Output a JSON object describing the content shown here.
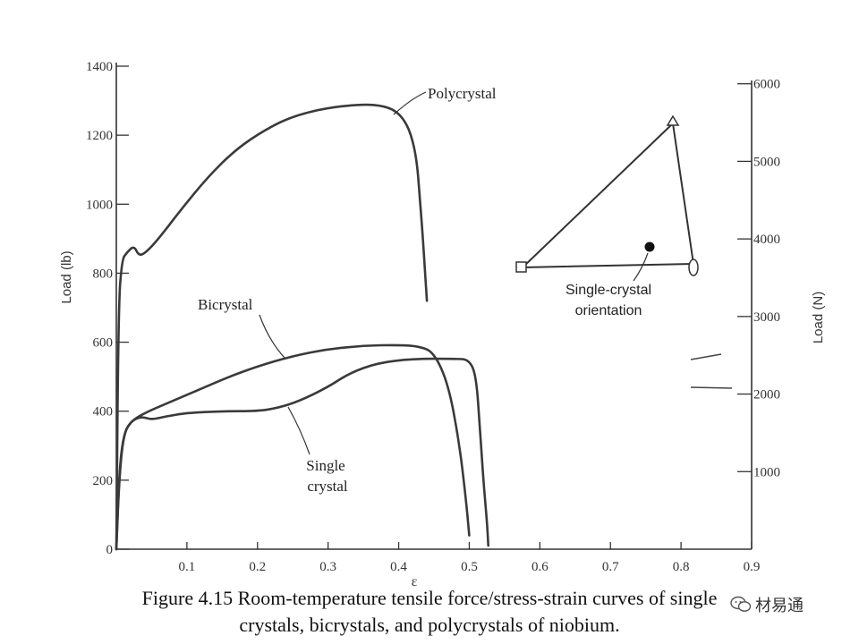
{
  "chart_data": {
    "type": "line",
    "title": "",
    "xlabel": "ε",
    "ylabel_left": "Load (lb)",
    "ylabel_right": "Load (N)",
    "xlim": [
      0,
      0.9
    ],
    "ylim_left": [
      0,
      1400
    ],
    "ylim_right": [
      0,
      6227
    ],
    "x_ticks": [
      {
        "value": 0.1,
        "label": "0.1"
      },
      {
        "value": 0.2,
        "label": "0.2"
      },
      {
        "value": 0.3,
        "label": "0.3"
      },
      {
        "value": 0.4,
        "label": "0.4"
      },
      {
        "value": 0.5,
        "label": "0.5"
      },
      {
        "value": 0.6,
        "label": "0.6"
      },
      {
        "value": 0.7,
        "label": "0.7"
      },
      {
        "value": 0.8,
        "label": "0.8"
      },
      {
        "value": 0.9,
        "label": "0.9"
      }
    ],
    "y_ticks_left": [
      {
        "value": 0,
        "label": "0"
      },
      {
        "value": 200,
        "label": "200"
      },
      {
        "value": 400,
        "label": "400"
      },
      {
        "value": 600,
        "label": "600"
      },
      {
        "value": 800,
        "label": "800"
      },
      {
        "value": 1000,
        "label": "1000"
      },
      {
        "value": 1200,
        "label": "1200"
      },
      {
        "value": 1400,
        "label": "1400"
      }
    ],
    "y_ticks_right": [
      {
        "value": 1000,
        "label": "1000"
      },
      {
        "value": 2000,
        "label": "2000"
      },
      {
        "value": 3000,
        "label": "3000"
      },
      {
        "value": 4000,
        "label": "4000"
      },
      {
        "value": 5000,
        "label": "5000"
      },
      {
        "value": 6000,
        "label": "6000"
      }
    ],
    "series": [
      {
        "name": "Polycrystal",
        "points": [
          [
            0,
            0
          ],
          [
            0.003,
            700
          ],
          [
            0.008,
            840
          ],
          [
            0.015,
            860
          ],
          [
            0.025,
            880
          ],
          [
            0.032,
            850
          ],
          [
            0.042,
            860
          ],
          [
            0.06,
            900
          ],
          [
            0.09,
            980
          ],
          [
            0.13,
            1080
          ],
          [
            0.17,
            1160
          ],
          [
            0.21,
            1215
          ],
          [
            0.25,
            1255
          ],
          [
            0.3,
            1280
          ],
          [
            0.35,
            1290
          ],
          [
            0.38,
            1285
          ],
          [
            0.4,
            1265
          ],
          [
            0.415,
            1220
          ],
          [
            0.425,
            1140
          ],
          [
            0.43,
            1020
          ],
          [
            0.435,
            880
          ],
          [
            0.44,
            720
          ]
        ]
      },
      {
        "name": "Bicrystal",
        "points": [
          [
            0,
            0
          ],
          [
            0.004,
            200
          ],
          [
            0.01,
            330
          ],
          [
            0.02,
            370
          ],
          [
            0.04,
            395
          ],
          [
            0.08,
            430
          ],
          [
            0.12,
            465
          ],
          [
            0.16,
            500
          ],
          [
            0.2,
            530
          ],
          [
            0.25,
            560
          ],
          [
            0.3,
            580
          ],
          [
            0.35,
            590
          ],
          [
            0.4,
            592
          ],
          [
            0.43,
            588
          ],
          [
            0.45,
            570
          ],
          [
            0.47,
            480
          ],
          [
            0.485,
            320
          ],
          [
            0.495,
            150
          ],
          [
            0.5,
            40
          ]
        ]
      },
      {
        "name": "Single crystal",
        "points": [
          [
            0,
            0
          ],
          [
            0.004,
            220
          ],
          [
            0.01,
            330
          ],
          [
            0.02,
            370
          ],
          [
            0.035,
            385
          ],
          [
            0.05,
            375
          ],
          [
            0.07,
            385
          ],
          [
            0.1,
            395
          ],
          [
            0.15,
            400
          ],
          [
            0.2,
            400
          ],
          [
            0.23,
            410
          ],
          [
            0.26,
            430
          ],
          [
            0.3,
            470
          ],
          [
            0.33,
            510
          ],
          [
            0.37,
            540
          ],
          [
            0.42,
            552
          ],
          [
            0.48,
            552
          ],
          [
            0.5,
            550
          ],
          [
            0.51,
            500
          ],
          [
            0.515,
            350
          ],
          [
            0.52,
            200
          ],
          [
            0.525,
            80
          ],
          [
            0.527,
            10
          ]
        ]
      }
    ],
    "series_labels": [
      "Polycrystal",
      "Bicrystal",
      "Single",
      "crystal"
    ],
    "inset": {
      "label_lines": [
        "Single-crystal",
        "orientation"
      ],
      "markers": [
        "square",
        "triangle",
        "ellipse"
      ]
    }
  },
  "caption": {
    "line1": "Figure 4.15 Room-temperature tensile force/stress-strain curves of single",
    "line2": "crystals, bicrystals, and polycrystals of niobium."
  },
  "watermark": {
    "text": "材易通",
    "icon": "wechat-icon"
  },
  "colors": {
    "ink": "#333333",
    "curve": "#3a3a3a"
  }
}
